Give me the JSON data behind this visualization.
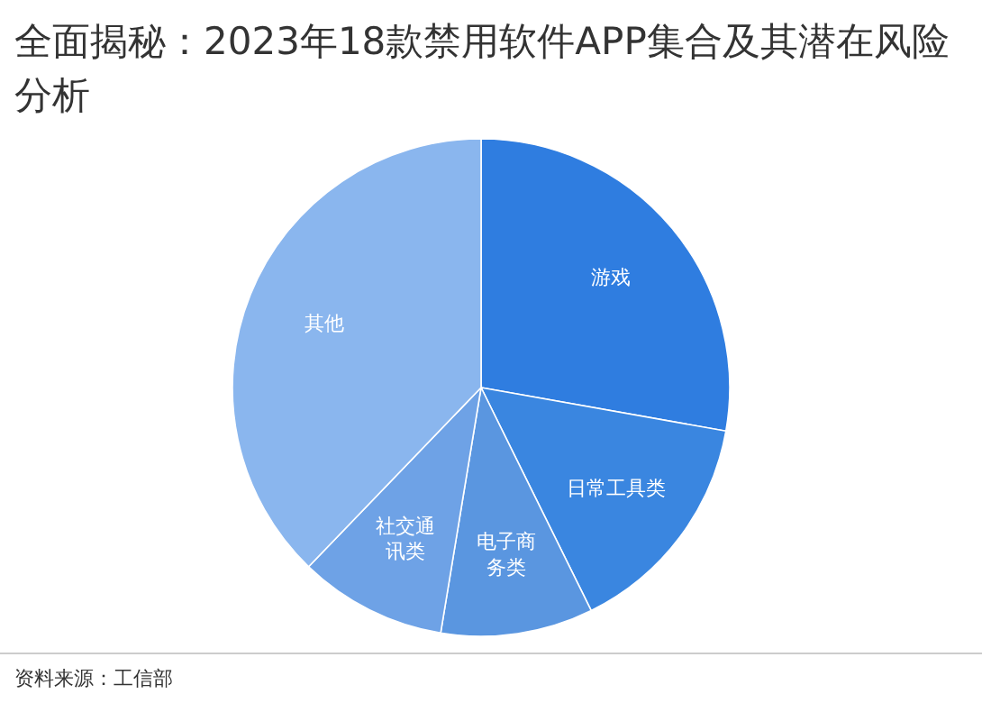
{
  "chart_data": {
    "type": "pie",
    "title": "全面揭秘：2023年18款禁用软件APP集合及其潜在风险分析",
    "categories": [
      "游戏",
      "日常工具类",
      "电子商务类",
      "社交通讯类",
      "其他"
    ],
    "values": [
      27.8,
      14.9,
      9.9,
      9.6,
      37.8
    ],
    "colors": [
      "#2f7de0",
      "#3a86e0",
      "#5a96e0",
      "#6ea2e6",
      "#8ab6ee"
    ],
    "annotations": [
      "资料来源：工信部"
    ]
  }
}
